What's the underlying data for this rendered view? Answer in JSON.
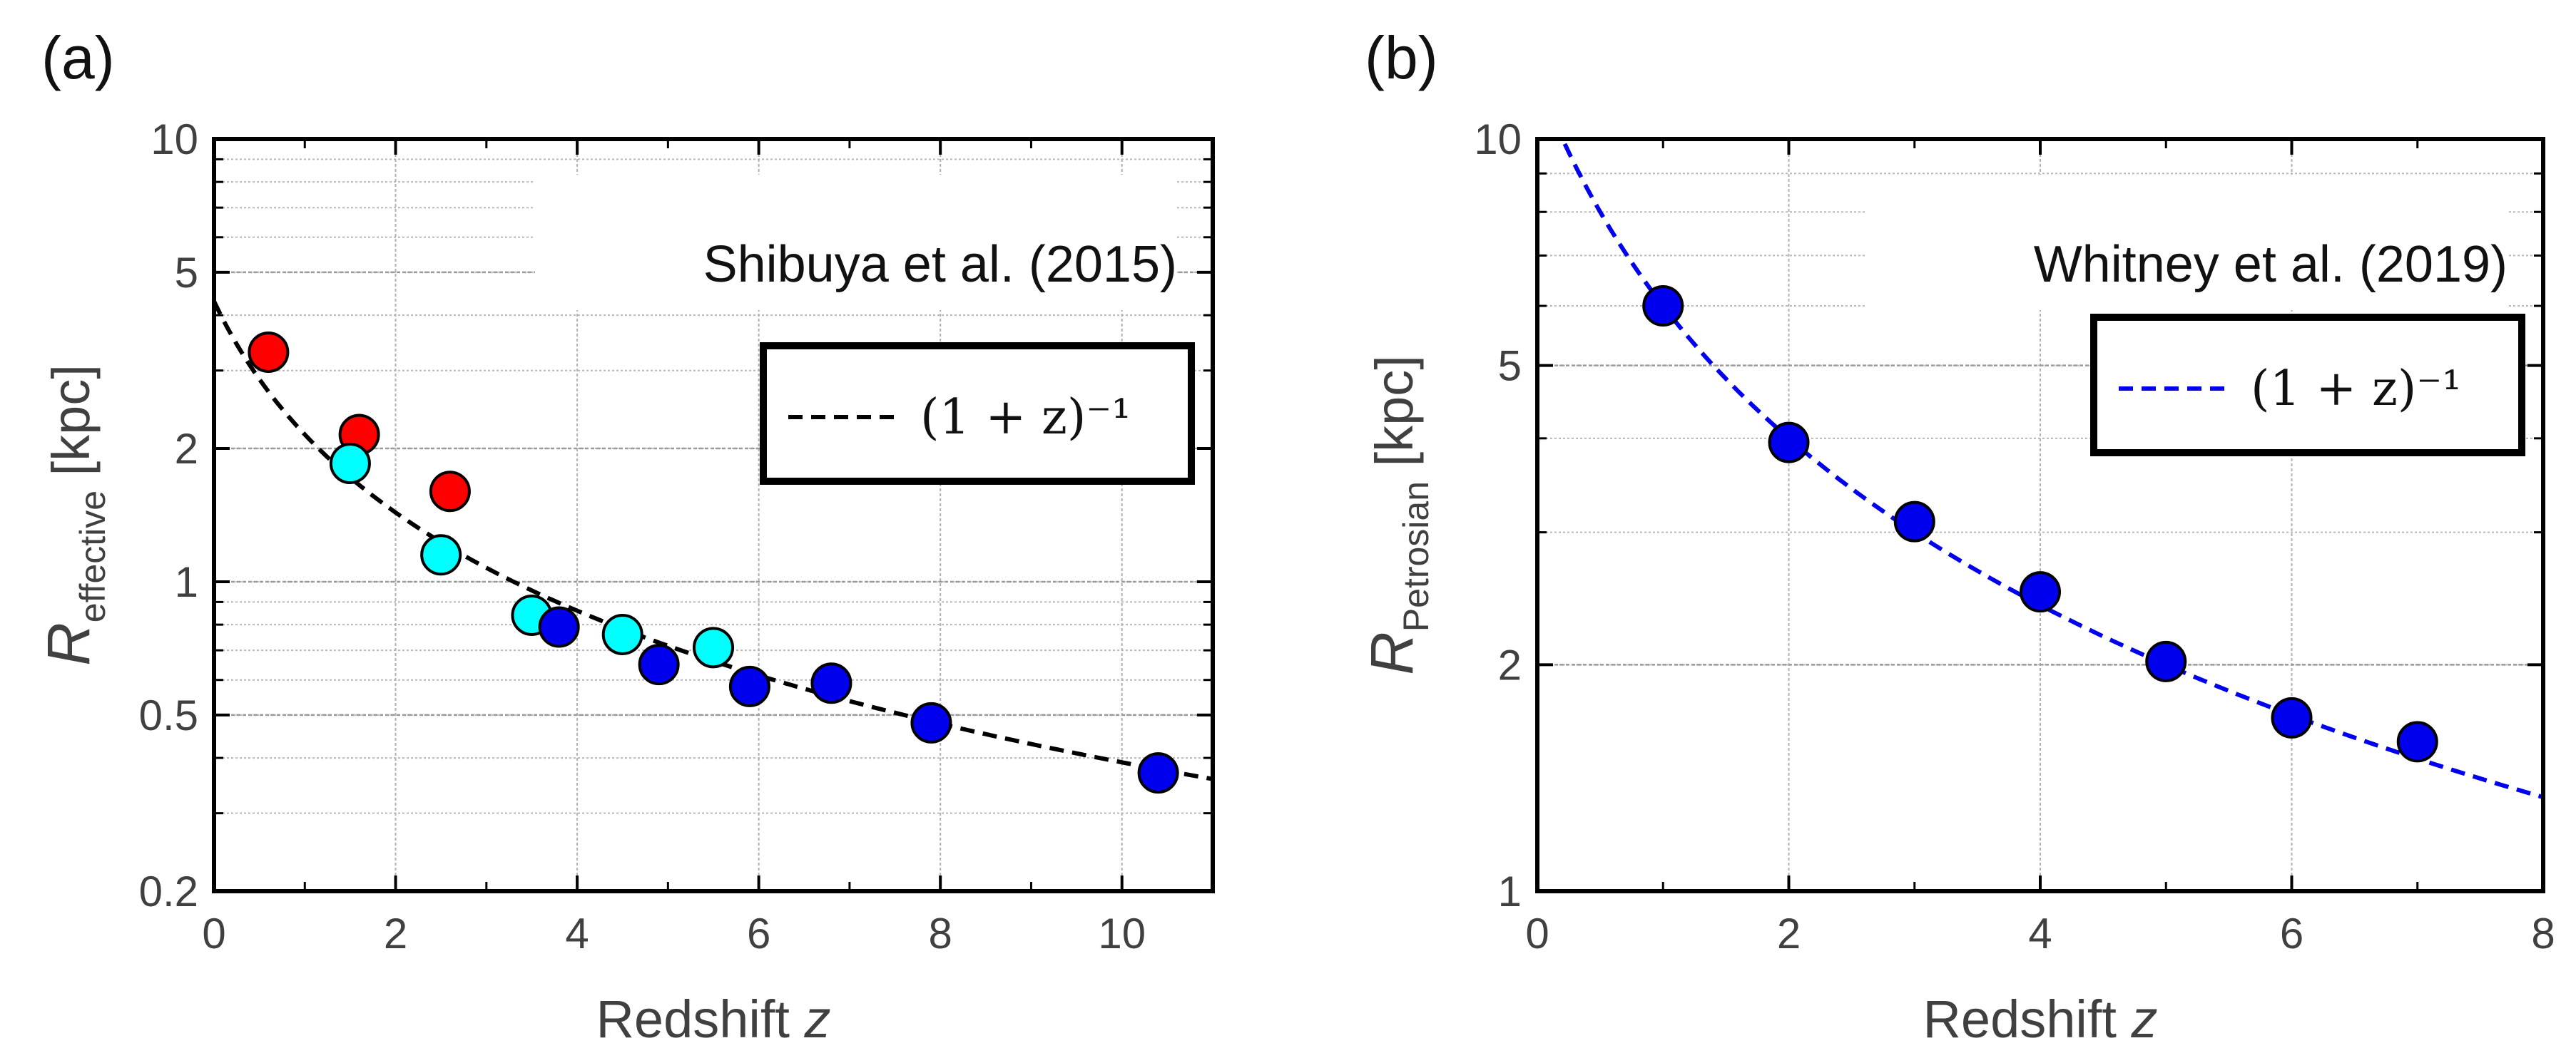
{
  "chart_data": [
    {
      "type": "scatter",
      "panel_label": "(a)",
      "annotation": "Shibuya et al. (2015)",
      "xlabel": "Redshift",
      "xlabel_var": "z",
      "ylabel_main": "R",
      "ylabel_sub": "effective",
      "ylabel_unit": "[kpc]",
      "xscale": "linear",
      "yscale": "log",
      "xlim": [
        0,
        11
      ],
      "ylim": [
        0.2,
        10
      ],
      "xticks": [
        0,
        2,
        4,
        6,
        8,
        10
      ],
      "xtick_labels": [
        "0",
        "2",
        "4",
        "6",
        "8",
        "10"
      ],
      "yticks": [
        0.2,
        0.5,
        1,
        2,
        5,
        10
      ],
      "ytick_labels": [
        "0.2",
        "0.5",
        "1",
        "2",
        "5",
        "10"
      ],
      "grid": true,
      "legend": {
        "label": "(1 + z)⁻¹",
        "placement": "top-right"
      },
      "fit": {
        "form": "A/(1+z)",
        "A": 4.3,
        "color": "#000000",
        "style": "dashed"
      },
      "series": [
        {
          "name": "red",
          "color": "#ff0000",
          "x": [
            0.6,
            1.6,
            2.6
          ],
          "y": [
            3.3,
            2.15,
            1.6
          ]
        },
        {
          "name": "cyan",
          "color": "#00ffff",
          "x": [
            1.5,
            2.5,
            3.5,
            4.5,
            5.5
          ],
          "y": [
            1.85,
            1.15,
            0.84,
            0.76,
            0.71
          ]
        },
        {
          "name": "blue",
          "color": "#0000ee",
          "x": [
            3.8,
            4.9,
            5.9,
            6.8,
            7.9,
            10.4
          ],
          "y": [
            0.79,
            0.65,
            0.58,
            0.59,
            0.48,
            0.37
          ]
        }
      ]
    },
    {
      "type": "scatter",
      "panel_label": "(b)",
      "annotation": "Whitney et al. (2019)",
      "xlabel": "Redshift",
      "xlabel_var": "z",
      "ylabel_main": "R",
      "ylabel_sub": "Petrosian",
      "ylabel_unit": "[kpc]",
      "xscale": "linear",
      "yscale": "log",
      "xlim": [
        0,
        8
      ],
      "ylim": [
        1,
        10
      ],
      "xticks": [
        0,
        2,
        4,
        6,
        8
      ],
      "xtick_labels": [
        "0",
        "2",
        "4",
        "6",
        "8"
      ],
      "yticks": [
        1,
        2,
        5,
        10
      ],
      "ytick_labels": [
        "1",
        "2",
        "5",
        "10"
      ],
      "grid": true,
      "legend": {
        "label": "(1 + z)⁻¹",
        "placement": "top-right"
      },
      "fit": {
        "form": "A/(1+z)",
        "A": 12,
        "color": "#0000ee",
        "style": "dashed"
      },
      "series": [
        {
          "name": "blue",
          "color": "#0000ee",
          "x": [
            1,
            2,
            3,
            4,
            5,
            6,
            7
          ],
          "y": [
            6.0,
            3.95,
            3.1,
            2.5,
            2.02,
            1.7,
            1.58
          ]
        }
      ]
    }
  ]
}
